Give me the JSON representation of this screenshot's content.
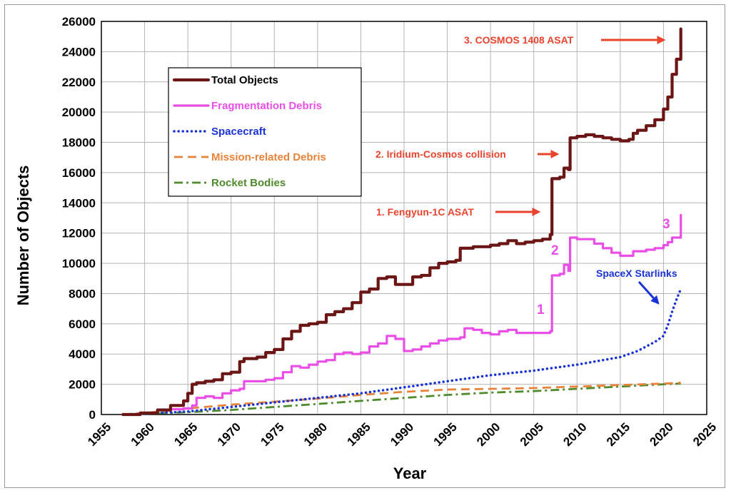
{
  "chart_data": {
    "type": "line",
    "title": "",
    "xlabel": "Year",
    "ylabel": "Number of Objects",
    "xlim": [
      1955,
      2025
    ],
    "ylim": [
      0,
      26000
    ],
    "xticks": [
      1955,
      1960,
      1965,
      1970,
      1975,
      1980,
      1985,
      1990,
      1995,
      2000,
      2005,
      2010,
      2015,
      2020,
      2025
    ],
    "yticks": [
      0,
      2000,
      4000,
      6000,
      8000,
      10000,
      12000,
      14000,
      16000,
      18000,
      20000,
      22000,
      24000,
      26000
    ],
    "grid": true,
    "legend_position": "top-left",
    "series": [
      {
        "name": "Total Objects",
        "color": "#6b1515",
        "style": "solid",
        "x": [
          1957.5,
          1959.5,
          1961.5,
          1963,
          1964.5,
          1965,
          1965.5,
          1966,
          1967,
          1968,
          1969,
          1970,
          1971,
          1971.5,
          1973,
          1974,
          1975,
          1976,
          1977,
          1978,
          1979,
          1980,
          1981,
          1982,
          1983,
          1984,
          1985,
          1986,
          1987,
          1988,
          1989,
          1990,
          1991,
          1992,
          1993,
          1994,
          1995,
          1996,
          1996.5,
          1997,
          1998,
          1999,
          2000,
          2001,
          2002,
          2003,
          2004,
          2005,
          2006,
          2006.9,
          2007.1,
          2008,
          2008.5,
          2009,
          2009.2,
          2010,
          2011,
          2012,
          2013,
          2014,
          2015,
          2016,
          2016.5,
          2017,
          2018,
          2019,
          2020,
          2020.5,
          2021,
          2021.5,
          2022
        ],
        "y": [
          0,
          100,
          300,
          600,
          900,
          1400,
          2000,
          2100,
          2200,
          2300,
          2700,
          2800,
          3500,
          3700,
          3800,
          4100,
          4300,
          5000,
          5500,
          5900,
          6000,
          6100,
          6600,
          6800,
          7000,
          7400,
          8100,
          8300,
          9000,
          9100,
          8600,
          8600,
          9100,
          9200,
          9700,
          10000,
          10100,
          10200,
          11000,
          11000,
          11100,
          11100,
          11200,
          11300,
          11500,
          11300,
          11400,
          11500,
          11600,
          11900,
          15600,
          15700,
          16300,
          16200,
          18300,
          18400,
          18500,
          18400,
          18300,
          18200,
          18100,
          18200,
          18600,
          18800,
          19100,
          19500,
          20200,
          21000,
          22500,
          23500,
          25500
        ]
      },
      {
        "name": "Fragmentation Debris",
        "color": "#e94fe6",
        "style": "solid",
        "x": [
          1961.5,
          1963,
          1964.5,
          1965.5,
          1966,
          1967,
          1968,
          1969,
          1970,
          1971,
          1971.5,
          1973,
          1974,
          1975,
          1976,
          1977,
          1978,
          1979,
          1980,
          1981,
          1982,
          1983,
          1984,
          1985,
          1986,
          1987,
          1988,
          1989,
          1990,
          1991,
          1992,
          1993,
          1994,
          1995,
          1996,
          1996.5,
          1997,
          1998,
          1999,
          2000,
          2001,
          2002,
          2003,
          2004,
          2005,
          2006,
          2006.9,
          2007.1,
          2008,
          2008.5,
          2009,
          2009.2,
          2010,
          2011,
          2012,
          2013,
          2014,
          2015,
          2016,
          2016.5,
          2017,
          2018,
          2019,
          2020,
          2020.5,
          2021,
          2021.5,
          2022
        ],
        "y": [
          300,
          350,
          400,
          600,
          1100,
          1200,
          1100,
          1400,
          1600,
          1700,
          2200,
          2200,
          2300,
          2400,
          2800,
          3200,
          3100,
          3300,
          3500,
          3600,
          4000,
          4100,
          4000,
          4100,
          4500,
          4700,
          5200,
          5000,
          4200,
          4300,
          4500,
          4700,
          4900,
          5000,
          5000,
          5100,
          5700,
          5600,
          5400,
          5300,
          5500,
          5600,
          5400,
          5400,
          5400,
          5400,
          5500,
          9200,
          9300,
          9900,
          9500,
          11700,
          11600,
          11600,
          11300,
          11000,
          10700,
          10500,
          10500,
          10800,
          10800,
          10900,
          11000,
          11200,
          11400,
          11700,
          11700,
          13200
        ]
      },
      {
        "name": "Spacecraft",
        "color": "#1a33d6",
        "style": "dotted",
        "x": [
          1957.5,
          1960,
          1965,
          1970,
          1975,
          1980,
          1985,
          1990,
          1995,
          2000,
          2005,
          2010,
          2015,
          2017,
          2019,
          2020,
          2020.5,
          2021,
          2021.5,
          2022
        ],
        "y": [
          0,
          50,
          200,
          500,
          800,
          1100,
          1400,
          1800,
          2200,
          2600,
          2900,
          3300,
          3800,
          4200,
          4800,
          5200,
          5900,
          6800,
          7600,
          8300
        ]
      },
      {
        "name": "Mission-related Debris",
        "color": "#e8833a",
        "style": "dashed",
        "x": [
          1957.5,
          1960,
          1965,
          1970,
          1975,
          1980,
          1985,
          1990,
          1995,
          2000,
          2005,
          2010,
          2015,
          2020,
          2022
        ],
        "y": [
          0,
          100,
          400,
          650,
          850,
          1050,
          1300,
          1500,
          1650,
          1700,
          1750,
          1850,
          1950,
          2050,
          2100
        ]
      },
      {
        "name": "Rocket Bodies",
        "color": "#4f8a2c",
        "style": "dash-dot",
        "x": [
          1957.5,
          1960,
          1965,
          1970,
          1975,
          1980,
          1985,
          1990,
          1995,
          2000,
          2005,
          2010,
          2015,
          2020,
          2022
        ],
        "y": [
          0,
          50,
          150,
          300,
          500,
          700,
          900,
          1100,
          1300,
          1450,
          1550,
          1700,
          1850,
          2000,
          2050
        ]
      }
    ],
    "annotations": [
      {
        "label": "3. COSMOS 1408 ASAT",
        "color": "#e8452e"
      },
      {
        "label": "2. Iridium-Cosmos collision",
        "color": "#e8452e"
      },
      {
        "label": "1. Fengyun-1C ASAT",
        "color": "#e8452e"
      },
      {
        "label": "SpaceX Starlinks",
        "color": "#1a33d6"
      },
      {
        "label": "1",
        "color": "#e94fe6"
      },
      {
        "label": "2",
        "color": "#e94fe6"
      },
      {
        "label": "3",
        "color": "#e94fe6"
      }
    ]
  }
}
